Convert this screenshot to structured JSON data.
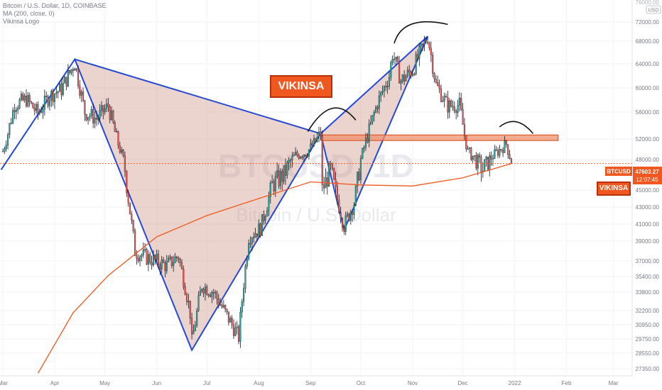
{
  "legend": {
    "symbol_line": "Bitcoin / U.S. Dollar, 1D, COINBASE",
    "ma_line": "MA (200, close, 0)",
    "logo_line": "Vikinsa Logo"
  },
  "watermark": {
    "big": "BTCUSD, 1D",
    "small": "Bitcoin / U.S. Dollar"
  },
  "badges": {
    "main": "VIKINSA",
    "right": "VIKINSA"
  },
  "price_scale": {
    "currency": "USD",
    "top_partial": "76000.00",
    "ticks": [
      "72000.00",
      "68000.00",
      "64000.00",
      "60000.00",
      "56000.00",
      "52000.00",
      "48000.00",
      "45000.00",
      "43000.00",
      "41000.00",
      "39000.00",
      "37000.00",
      "35400.00",
      "33800.00",
      "32200.00",
      "30950.00",
      "29750.00",
      "28550.00",
      "27350.00"
    ]
  },
  "time_scale": {
    "ticks": [
      "Mar",
      "Apr",
      "May",
      "Jun",
      "Jul",
      "Aug",
      "Sep",
      "Oct",
      "Nov",
      "Dec",
      "2022",
      "Feb",
      "Mar"
    ]
  },
  "last_price": {
    "symbol": "BTCUSD",
    "value": "47603.27",
    "countdown": "12:07:45"
  },
  "colors": {
    "up": "#26a69a",
    "down": "#ef5350",
    "candle": "#131722",
    "ma": "#f0581f",
    "pattern_line": "#2449d6",
    "pattern_fill": "#c98574",
    "zone_fill": "#f0906a",
    "zone_border": "#d8471a",
    "badge": "#f0581f"
  },
  "chart_data": {
    "type": "candlestick",
    "title": "Bitcoin / U.S. Dollar, 1D, COINBASE",
    "series": [
      {
        "name": "Bitcoin / U.S. Dollar",
        "type": "candlestick",
        "points_close": [
          [
            "2021-03-01",
            49600
          ],
          [
            "2021-03-08",
            57200
          ],
          [
            "2021-03-15",
            58100
          ],
          [
            "2021-03-22",
            55800
          ],
          [
            "2021-03-29",
            58700
          ],
          [
            "2021-04-05",
            59800
          ],
          [
            "2021-04-13",
            64200
          ],
          [
            "2021-04-19",
            56000
          ],
          [
            "2021-04-26",
            55000
          ],
          [
            "2021-05-03",
            57000
          ],
          [
            "2021-05-10",
            50000
          ],
          [
            "2021-05-13",
            47000
          ],
          [
            "2021-05-19",
            38000
          ],
          [
            "2021-05-24",
            37500
          ],
          [
            "2021-05-31",
            37000
          ],
          [
            "2021-06-07",
            36500
          ],
          [
            "2021-06-14",
            37500
          ],
          [
            "2021-06-21",
            32000
          ],
          [
            "2021-06-22",
            29500
          ],
          [
            "2021-06-28",
            34500
          ],
          [
            "2021-07-05",
            33800
          ],
          [
            "2021-07-12",
            32000
          ],
          [
            "2021-07-20",
            29900
          ],
          [
            "2021-07-26",
            39500
          ],
          [
            "2021-08-02",
            40500
          ],
          [
            "2021-08-09",
            45500
          ],
          [
            "2021-08-16",
            46500
          ],
          [
            "2021-08-23",
            48800
          ],
          [
            "2021-08-30",
            49500
          ],
          [
            "2021-09-07",
            52800
          ],
          [
            "2021-09-08",
            45000
          ],
          [
            "2021-09-13",
            47000
          ],
          [
            "2021-09-21",
            40800
          ],
          [
            "2021-09-27",
            43500
          ],
          [
            "2021-10-04",
            51500
          ],
          [
            "2021-10-11",
            57500
          ],
          [
            "2021-10-18",
            62000
          ],
          [
            "2021-10-20",
            65800
          ],
          [
            "2021-10-25",
            61200
          ],
          [
            "2021-11-01",
            63000
          ],
          [
            "2021-11-10",
            68900
          ],
          [
            "2021-11-15",
            60500
          ],
          [
            "2021-11-22",
            57000
          ],
          [
            "2021-11-29",
            57200
          ],
          [
            "2021-12-04",
            49500
          ],
          [
            "2021-12-13",
            47000
          ],
          [
            "2021-12-20",
            49000
          ],
          [
            "2021-12-27",
            51000
          ],
          [
            "2021-12-30",
            47603.27
          ]
        ]
      },
      {
        "name": "MA (200, close, 0)",
        "type": "line",
        "points": [
          [
            "2021-03-22",
            27000
          ],
          [
            "2021-04-12",
            32000
          ],
          [
            "2021-05-03",
            35500
          ],
          [
            "2021-06-01",
            39500
          ],
          [
            "2021-07-01",
            42000
          ],
          [
            "2021-08-01",
            44000
          ],
          [
            "2021-09-01",
            45800
          ],
          [
            "2021-10-01",
            45500
          ],
          [
            "2021-11-01",
            45400
          ],
          [
            "2021-12-01",
            46200
          ],
          [
            "2021-12-30",
            47600
          ]
        ]
      }
    ],
    "xlabel": "",
    "ylabel": "",
    "ylim": [
      27000,
      76000
    ],
    "annotations": [
      "XABCD harmonic pattern",
      "resistance zone 51700-52500",
      "VIKINSA"
    ]
  }
}
